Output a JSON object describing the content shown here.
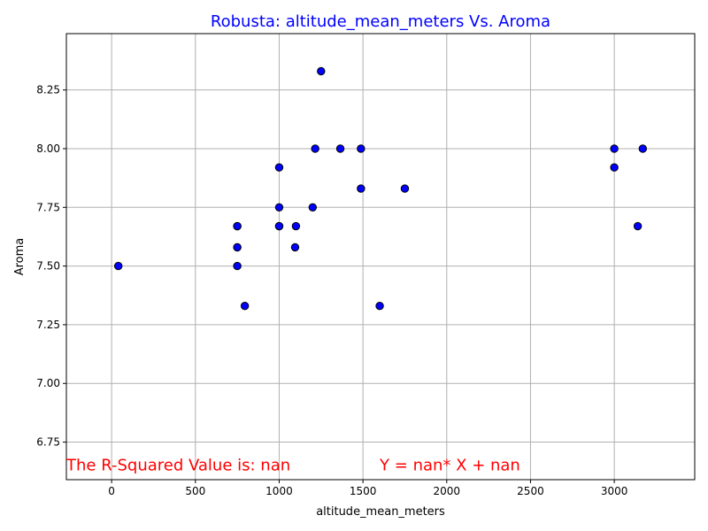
{
  "chart_data": {
    "type": "scatter",
    "title": "Robusta: altitude_mean_meters Vs. Aroma",
    "xlabel": "altitude_mean_meters",
    "ylabel": "Aroma",
    "xlim": [
      -270,
      3480
    ],
    "ylim": [
      6.59,
      8.49
    ],
    "xticks": [
      0,
      500,
      1000,
      1500,
      2000,
      2500,
      3000
    ],
    "yticks": [
      6.75,
      7.0,
      7.25,
      7.5,
      7.75,
      8.0,
      8.25
    ],
    "xtick_labels": [
      "0",
      "500",
      "1000",
      "1500",
      "2000",
      "2500",
      "3000"
    ],
    "ytick_labels": [
      "6.75",
      "7.00",
      "7.25",
      "7.50",
      "7.75",
      "8.00",
      "8.25"
    ],
    "grid": true,
    "point_color": "#0000ff",
    "edge_color": "#000000",
    "title_color": "#0000ff",
    "annotation_color": "#ff0000",
    "points": [
      {
        "x": 40,
        "y": 7.5
      },
      {
        "x": 750,
        "y": 7.67
      },
      {
        "x": 750,
        "y": 7.67
      },
      {
        "x": 750,
        "y": 7.58
      },
      {
        "x": 750,
        "y": 7.58
      },
      {
        "x": 750,
        "y": 7.5
      },
      {
        "x": 795,
        "y": 7.33
      },
      {
        "x": 1000,
        "y": 7.92
      },
      {
        "x": 1000,
        "y": 7.75
      },
      {
        "x": 1000,
        "y": 7.67
      },
      {
        "x": 1000,
        "y": 7.67
      },
      {
        "x": 1100,
        "y": 7.67
      },
      {
        "x": 1095,
        "y": 7.58
      },
      {
        "x": 1200,
        "y": 7.75
      },
      {
        "x": 1215,
        "y": 8.0
      },
      {
        "x": 1250,
        "y": 8.33
      },
      {
        "x": 1365,
        "y": 8.0
      },
      {
        "x": 1488,
        "y": 8.0
      },
      {
        "x": 1488,
        "y": 7.83
      },
      {
        "x": 1600,
        "y": 7.33
      },
      {
        "x": 1750,
        "y": 7.83
      },
      {
        "x": 3000,
        "y": 8.0
      },
      {
        "x": 3000,
        "y": 7.92
      },
      {
        "x": 3140,
        "y": 7.67
      },
      {
        "x": 3170,
        "y": 8.0
      }
    ],
    "annotations": [
      {
        "text": "The R-Squared Value is: nan",
        "x": -270,
        "y": 6.63
      },
      {
        "text": "Y = nan* X + nan",
        "x": 1600,
        "y": 6.63
      }
    ]
  }
}
